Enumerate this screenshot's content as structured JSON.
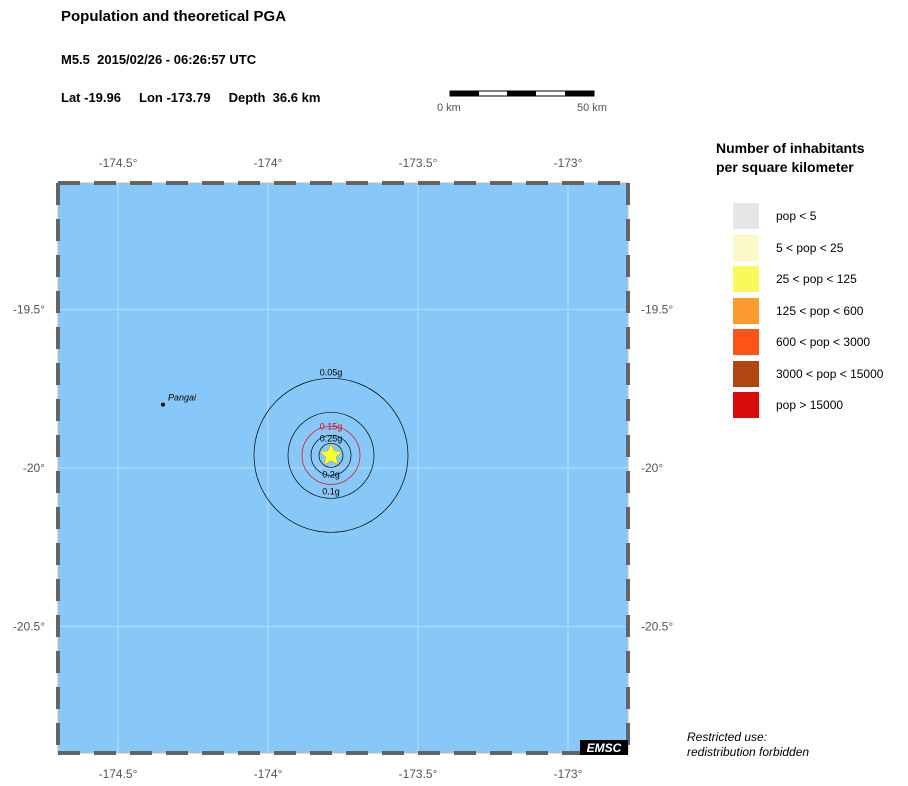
{
  "header": {
    "title": "Population and theoretical PGA",
    "event": "M5.5  2015/02/26 - 06:26:57 UTC",
    "coords": "Lat -19.96     Lon -173.79     Depth  36.6 km"
  },
  "scale_bar": {
    "left_label": "0 km",
    "right_label": "50 km"
  },
  "map": {
    "water_color": "#88c8f8",
    "lon_ticks": [
      {
        "value": -174.5,
        "label": "-174.5°"
      },
      {
        "value": -174.0,
        "label": "-174°"
      },
      {
        "value": -173.5,
        "label": "-173.5°"
      },
      {
        "value": -173.0,
        "label": "-173°"
      }
    ],
    "lat_ticks": [
      {
        "value": -19.5,
        "label": "-19.5°"
      },
      {
        "value": -20.0,
        "label": "-20°"
      },
      {
        "value": -20.5,
        "label": "-20.5°"
      }
    ],
    "lon_range": [
      -174.7,
      -172.8
    ],
    "lat_range": [
      -19.1,
      -20.9
    ],
    "epicenter": {
      "lat": -19.96,
      "lon": -173.79,
      "marker_color": "#ffff33"
    },
    "city": {
      "name": "Pangai",
      "lat": -19.8,
      "lon": -174.35
    },
    "pga_contours": [
      {
        "label": "0.25g",
        "color": "#000000"
      },
      {
        "label": "0.2g",
        "color": "#000000"
      },
      {
        "label": "0.15g",
        "color": "#e8000b"
      },
      {
        "label": "0.1g",
        "color": "#000000"
      },
      {
        "label": "0.05g",
        "color": "#000000"
      }
    ],
    "watermark": "EMSC"
  },
  "legend": {
    "title_line1": "Number of inhabitants",
    "title_line2": "per square kilometer",
    "items": [
      {
        "label": "pop < 5",
        "color": "#e6e6e6"
      },
      {
        "label": "5 < pop < 25",
        "color": "#fbf9c7"
      },
      {
        "label": "25 < pop < 125",
        "color": "#f9f95c"
      },
      {
        "label": "125 < pop < 600",
        "color": "#fb9a2e"
      },
      {
        "label": "600 < pop < 3000",
        "color": "#fc5317"
      },
      {
        "label": "3000 < pop < 15000",
        "color": "#b34712"
      },
      {
        "label": "pop > 15000",
        "color": "#d90b0b"
      }
    ]
  },
  "footer": {
    "line1": "Restricted use:",
    "line2": "redistribution forbidden"
  }
}
